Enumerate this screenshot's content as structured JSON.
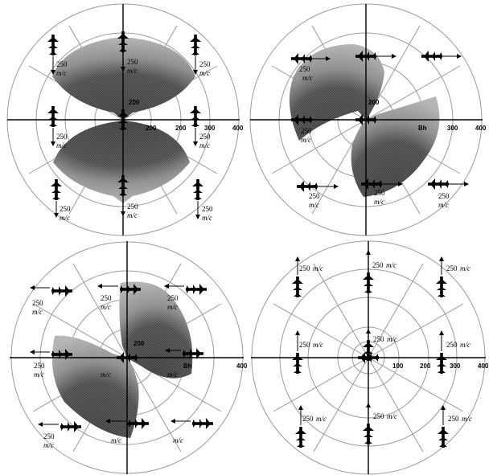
{
  "panels": [
    {
      "id": "top-left",
      "plane_orientation": "vertical",
      "ticks": [
        "200",
        "300",
        "400"
      ],
      "inner_tick": "200",
      "speed_labels": [
        {
          "value": "250",
          "unit": "m/c"
        },
        {
          "value": "250",
          "unit": "m/c"
        },
        {
          "value": "250",
          "unit": "m/c"
        },
        {
          "value": "250",
          "unit": "m/c"
        },
        {
          "value": "250",
          "unit": "m/c"
        },
        {
          "value": "250",
          "unit": "m/c"
        },
        {
          "value": "250",
          "unit": "m/c"
        },
        {
          "value": "250",
          "unit": "m/c"
        }
      ]
    },
    {
      "id": "top-right",
      "plane_orientation": "horizontal-right",
      "ticks": [
        "Bh",
        "300",
        "400"
      ],
      "inner_tick": "200",
      "speed_labels": [
        {
          "value": "250",
          "unit": "m/c"
        },
        {
          "value": "250",
          "unit": "m/c"
        },
        {
          "value": "250",
          "unit": "m/c"
        },
        {
          "value": "250",
          "unit": "m/c"
        },
        {
          "value": "250",
          "unit": "m/c"
        },
        {
          "value": "250",
          "unit": "m/c"
        }
      ]
    },
    {
      "id": "bottom-left",
      "plane_orientation": "horizontal-left",
      "ticks": [
        "Bh",
        "400"
      ],
      "inner_tick": "200",
      "speed_labels": [
        {
          "value": "250",
          "unit": "m/c"
        },
        {
          "value": "250",
          "unit": "m/c"
        },
        {
          "value": "250",
          "unit": "m/c"
        },
        {
          "value": "250",
          "unit": "m/c"
        },
        {
          "value": "250",
          "unit": "m/c"
        }
      ],
      "extra_unit_labels": [
        "m/c",
        "m/c",
        "m/c",
        "m/c"
      ]
    },
    {
      "id": "bottom-right",
      "plane_orientation": "vertical",
      "ticks": [
        "100",
        "200",
        "300",
        "400"
      ],
      "speed_labels": [
        {
          "value": "250",
          "unit": "m/c"
        },
        {
          "value": "250",
          "unit": "m/c"
        },
        {
          "value": "250",
          "unit": "m/c"
        },
        {
          "value": "250",
          "unit": "m/c"
        },
        {
          "value": "250",
          "unit": "m/c"
        },
        {
          "value": "250",
          "unit": "m/c"
        },
        {
          "value": "250",
          "unit": "m/c"
        },
        {
          "value": "250",
          "unit": "m/c"
        },
        {
          "value": "250",
          "unit": "m/c"
        }
      ]
    }
  ],
  "colors": {
    "lobe_outer": "#9a9a9a",
    "lobe_inner": "#4a4a4a",
    "ring": "#999999",
    "axis": "#000000"
  }
}
